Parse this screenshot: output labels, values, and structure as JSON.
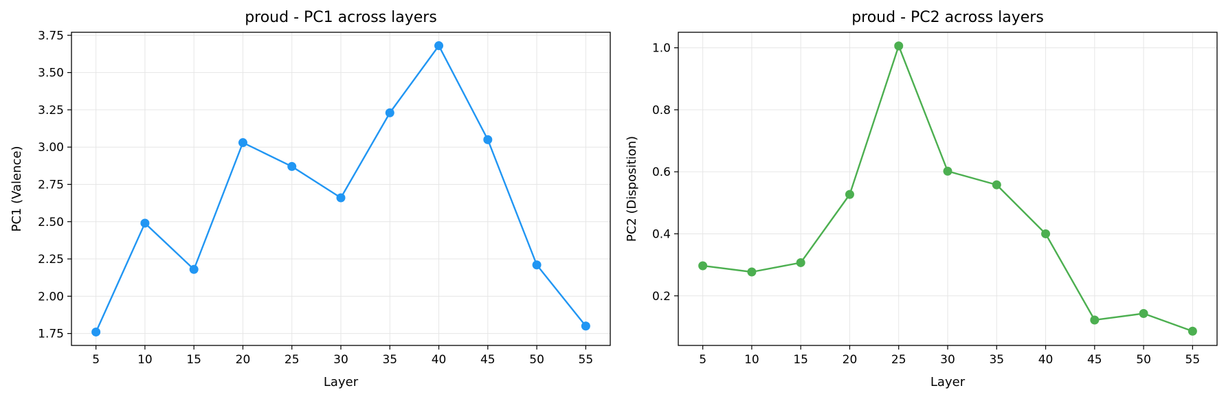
{
  "chart_data": [
    {
      "type": "line",
      "title": "proud - PC1 across layers",
      "xlabel": "Layer",
      "ylabel": "PC1 (Valence)",
      "x": [
        5,
        10,
        15,
        20,
        25,
        30,
        35,
        40,
        45,
        50,
        55
      ],
      "xticks": [
        "5",
        "10",
        "15",
        "20",
        "25",
        "30",
        "35",
        "40",
        "45",
        "50",
        "55"
      ],
      "series": [
        {
          "values": [
            1.76,
            2.49,
            2.18,
            3.03,
            2.87,
            2.66,
            3.23,
            3.68,
            3.05,
            2.21,
            1.8
          ],
          "color": "#2196F3"
        }
      ],
      "yticks": [
        "1.75",
        "2.00",
        "2.25",
        "2.50",
        "2.75",
        "3.00",
        "3.25",
        "3.50",
        "3.75"
      ],
      "xlim": [
        2.5,
        57.5
      ],
      "ylim": [
        1.67,
        3.77
      ],
      "grid": true
    },
    {
      "type": "line",
      "title": "proud - PC2 across layers",
      "xlabel": "Layer",
      "ylabel": "PC2 (Disposition)",
      "x": [
        5,
        10,
        15,
        20,
        25,
        30,
        35,
        40,
        45,
        50,
        55
      ],
      "xticks": [
        "5",
        "10",
        "15",
        "20",
        "25",
        "30",
        "35",
        "40",
        "45",
        "50",
        "55"
      ],
      "series": [
        {
          "values": [
            0.297,
            0.277,
            0.307,
            0.527,
            1.006,
            0.602,
            0.558,
            0.4,
            0.122,
            0.143,
            0.086
          ],
          "color": "#4CAF50"
        }
      ],
      "yticks": [
        "0.2",
        "0.4",
        "0.6",
        "0.8",
        "1.0"
      ],
      "xlim": [
        2.5,
        57.5
      ],
      "ylim": [
        0.04,
        1.05
      ],
      "grid": true
    }
  ]
}
